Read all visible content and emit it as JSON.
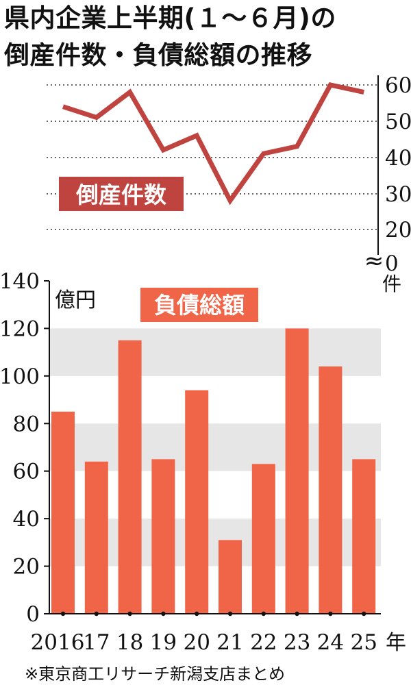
{
  "title_line1": "県内企業上半期(１～６月)の",
  "title_line2": "倒産件数・負債総額の推移",
  "source": "※東京商工リサーチ新潟支店まとめ",
  "colors": {
    "line": "#bf4440",
    "bar": "#f06447",
    "band": "#e6e6e6",
    "grid_dotted": "#333333"
  },
  "chart_data": [
    {
      "type": "line",
      "label": "倒産件数",
      "unit": "件",
      "axis_break": "≈",
      "x": [
        "2016",
        "17",
        "18",
        "19",
        "20",
        "21",
        "22",
        "23",
        "24",
        "25"
      ],
      "values": [
        54,
        51,
        58,
        42,
        46,
        28,
        41,
        43,
        60,
        58
      ],
      "y_ticks": [
        "60",
        "50",
        "40",
        "30",
        "20",
        "0"
      ],
      "ylim": [
        20,
        60
      ],
      "grid": "dotted",
      "axis_side": "right"
    },
    {
      "type": "bar",
      "label": "負債総額",
      "unit": "億円",
      "categories": [
        "2016",
        "17",
        "18",
        "19",
        "20",
        "21",
        "22",
        "23",
        "24",
        "25"
      ],
      "values": [
        85,
        64,
        115,
        65,
        94,
        31,
        63,
        120,
        104,
        65
      ],
      "y_ticks": [
        "140",
        "120",
        "100",
        "80",
        "60",
        "40",
        "20",
        "0"
      ],
      "ylim": [
        0,
        140
      ],
      "year_suffix": "年",
      "grid": "alternating bands"
    }
  ]
}
